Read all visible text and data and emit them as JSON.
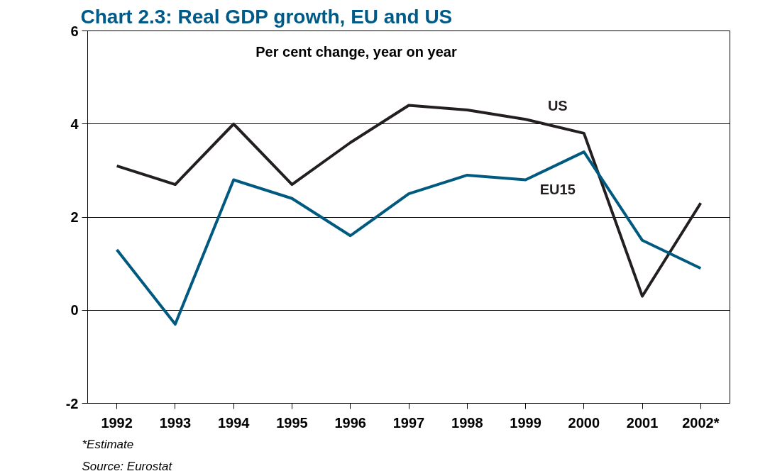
{
  "chart_data": {
    "type": "line",
    "title": "Chart 2.3: Real GDP growth, EU and US",
    "subtitle": "Per cent change, year on year",
    "categories": [
      "1992",
      "1993",
      "1994",
      "1995",
      "1996",
      "1997",
      "1998",
      "1999",
      "2000",
      "2001",
      "2002*"
    ],
    "series": [
      {
        "name": "US",
        "color": "#231f20",
        "values": [
          3.1,
          2.7,
          4.0,
          2.7,
          3.6,
          4.4,
          4.3,
          4.1,
          3.8,
          0.3,
          2.3
        ]
      },
      {
        "name": "EU15",
        "color": "#005a80",
        "values": [
          1.3,
          -0.3,
          2.8,
          2.4,
          1.6,
          2.5,
          2.9,
          2.8,
          3.4,
          1.5,
          0.9
        ]
      }
    ],
    "ylim": [
      -2,
      6
    ],
    "yticks": [
      -2,
      0,
      2,
      4,
      6
    ],
    "grid": "y",
    "marker": "none",
    "line_style": "solid",
    "annotations": [
      "*Estimate",
      "Source: Eurostat"
    ]
  }
}
